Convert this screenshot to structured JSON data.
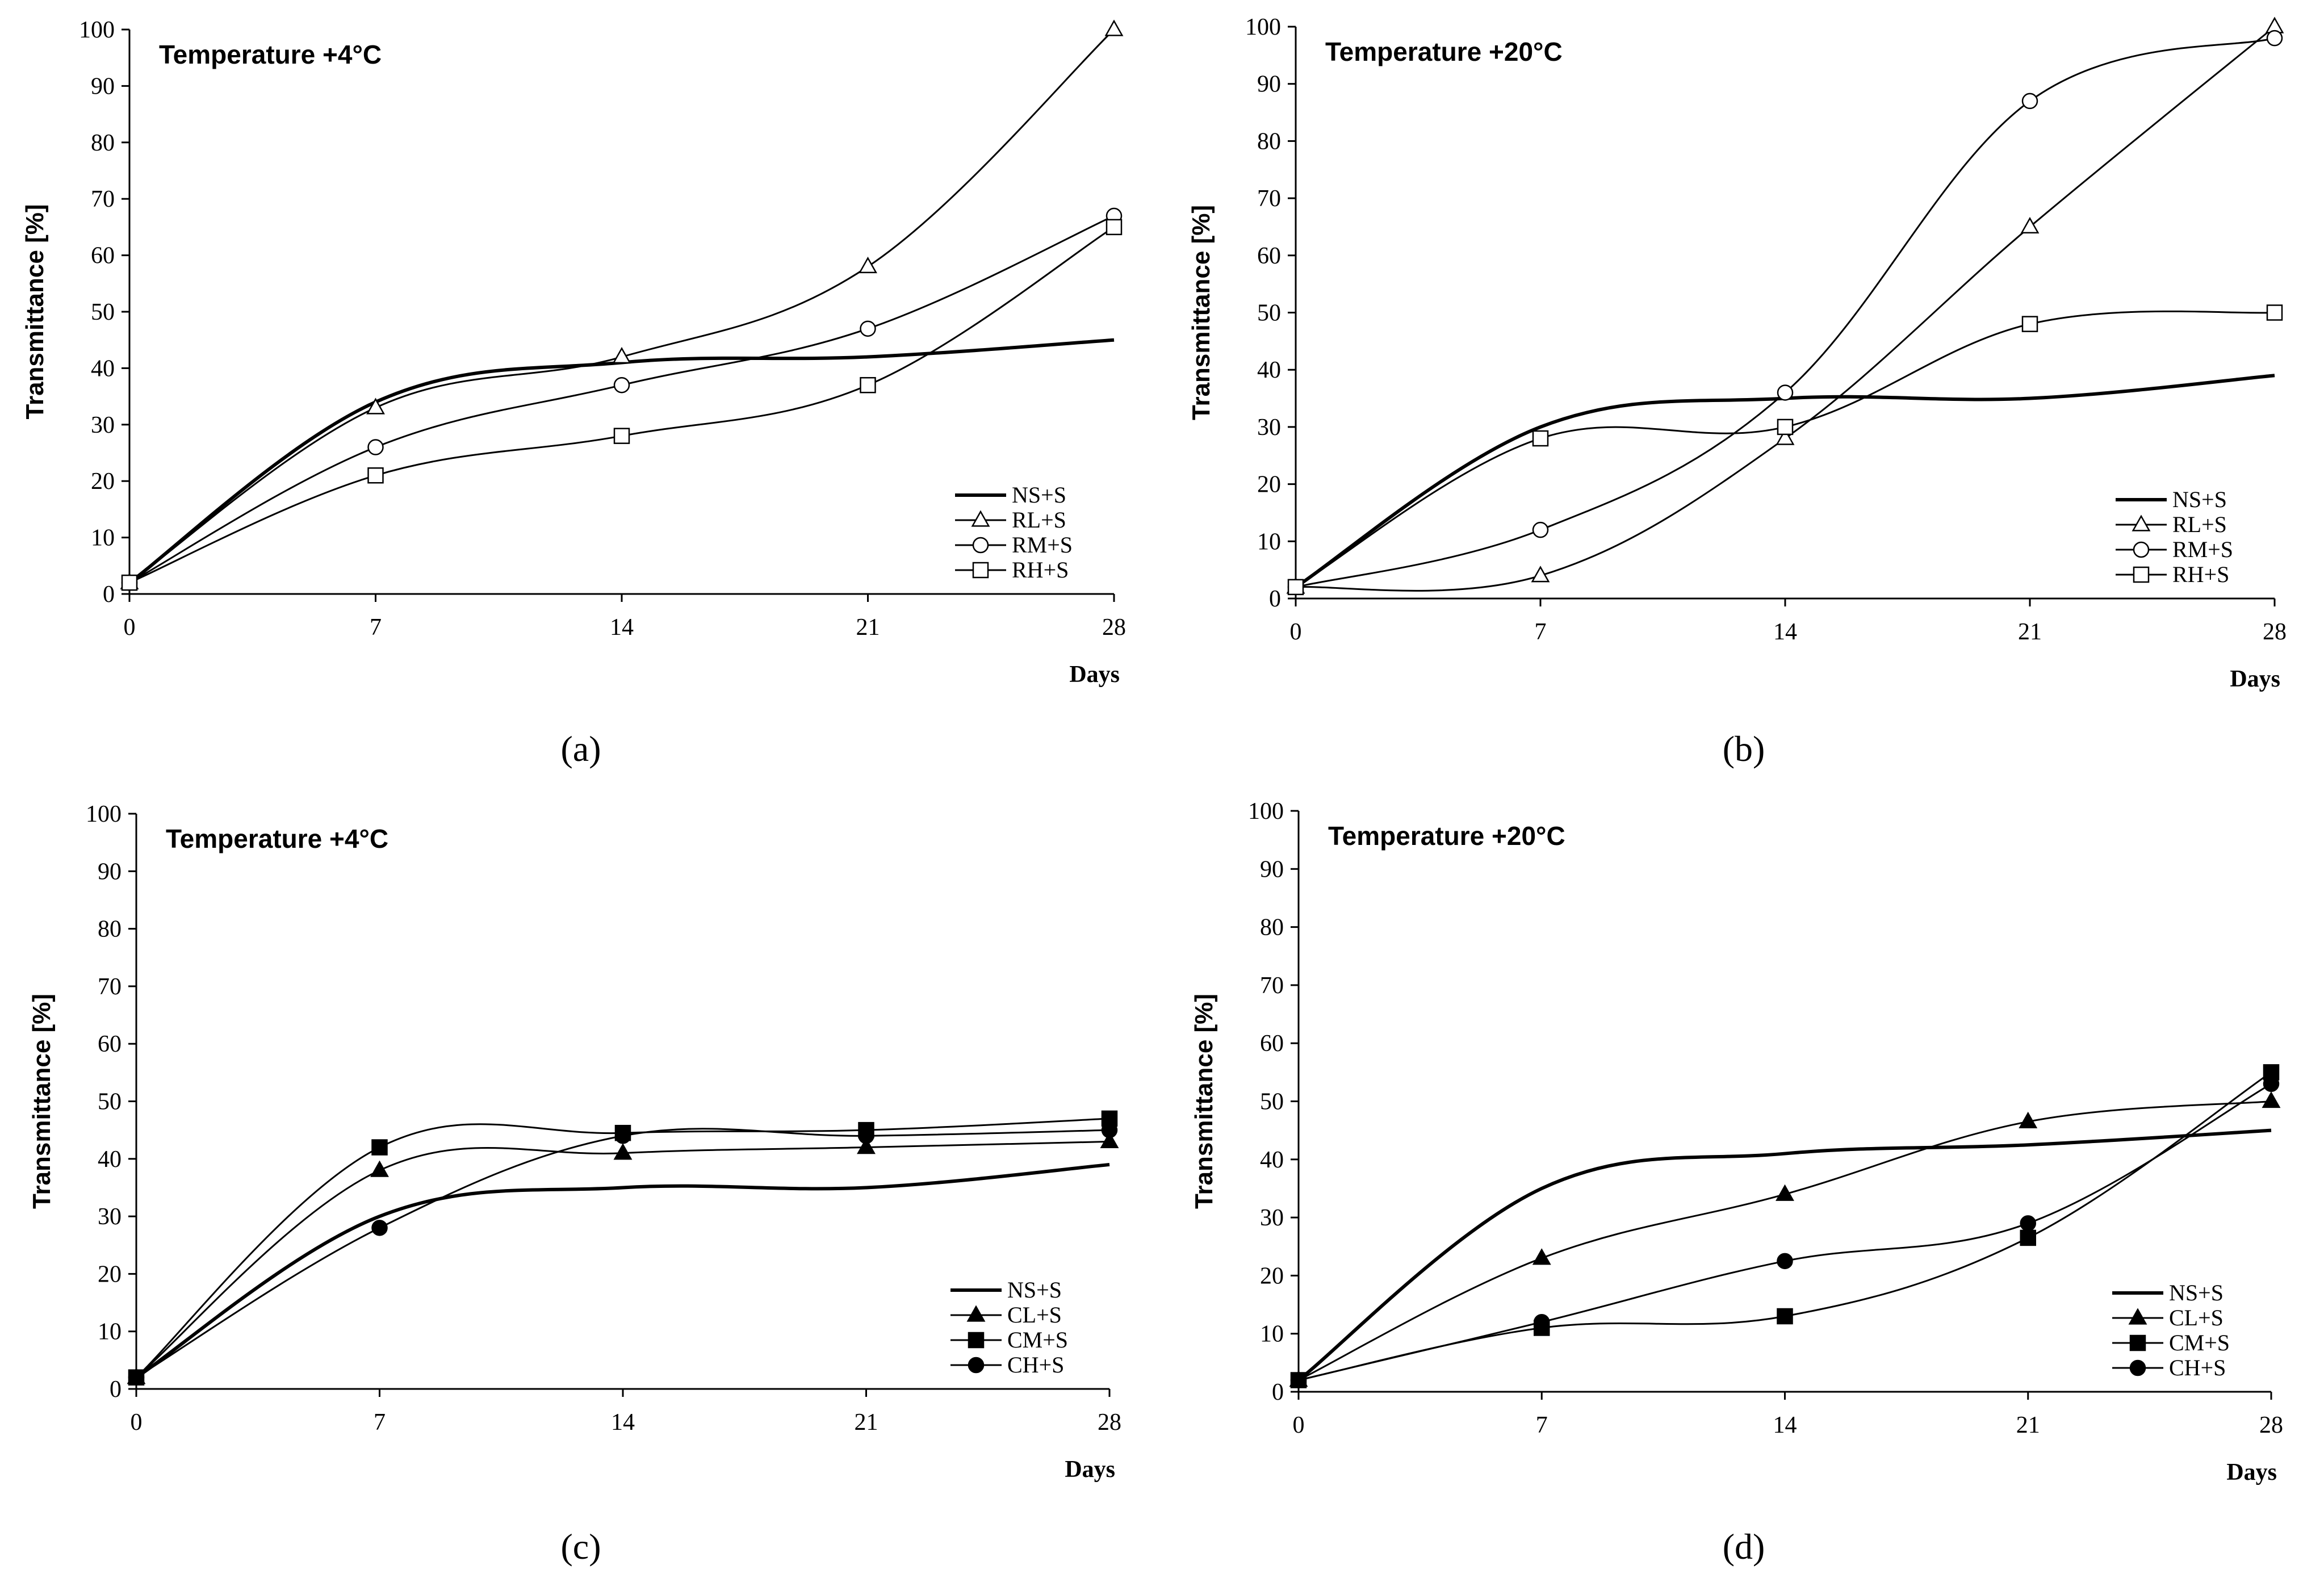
{
  "figure": {
    "x_ticks": [
      "0",
      "7",
      "14",
      "21",
      "28"
    ],
    "y_ticks": [
      "0",
      "10",
      "20",
      "30",
      "40",
      "50",
      "60",
      "70",
      "80",
      "90",
      "100"
    ]
  },
  "chart_data": [
    {
      "panel": "a",
      "type": "line",
      "caption": "(a)",
      "title": "Temperature +4°C",
      "xlabel": "Days",
      "ylabel": "Transmittance [%]",
      "x": [
        0,
        7,
        14,
        21,
        28
      ],
      "xlim": [
        0,
        28
      ],
      "ylim": [
        0,
        100
      ],
      "legend_position": "bottom-right",
      "series": [
        {
          "name": "NS+S",
          "marker": "none",
          "values": [
            2,
            34,
            41,
            42,
            45
          ]
        },
        {
          "name": "RL+S",
          "marker": "open-triangle",
          "values": [
            2,
            33,
            42,
            58,
            100
          ]
        },
        {
          "name": "RM+S",
          "marker": "open-circle",
          "values": [
            2,
            26,
            37,
            47,
            67
          ]
        },
        {
          "name": "RH+S",
          "marker": "open-square",
          "values": [
            2,
            21,
            28,
            37,
            65
          ]
        }
      ]
    },
    {
      "panel": "b",
      "type": "line",
      "caption": "(b)",
      "title": "Temperature +20°C",
      "xlabel": "Days",
      "ylabel": "Transmittance [%]",
      "x": [
        0,
        7,
        14,
        21,
        28
      ],
      "xlim": [
        0,
        28
      ],
      "ylim": [
        0,
        100
      ],
      "legend_position": "bottom-right",
      "series": [
        {
          "name": "NS+S",
          "marker": "none",
          "values": [
            2,
            30,
            35,
            35,
            39
          ]
        },
        {
          "name": "RL+S",
          "marker": "open-triangle",
          "values": [
            2,
            4,
            28,
            65,
            100
          ]
        },
        {
          "name": "RM+S",
          "marker": "open-circle",
          "values": [
            2,
            12,
            36,
            87,
            98
          ]
        },
        {
          "name": "RH+S",
          "marker": "open-square",
          "values": [
            2,
            28,
            30,
            48,
            50
          ]
        }
      ]
    },
    {
      "panel": "c",
      "type": "line",
      "caption": "(c)",
      "title": "Temperature +4°C",
      "xlabel": "Days",
      "ylabel": "Transmittance [%]",
      "x": [
        0,
        7,
        14,
        21,
        28
      ],
      "xlim": [
        0,
        28
      ],
      "ylim": [
        0,
        100
      ],
      "legend_position": "bottom-right",
      "series": [
        {
          "name": "NS+S",
          "marker": "none",
          "values": [
            2,
            30,
            35,
            35,
            39
          ]
        },
        {
          "name": "CL+S",
          "marker": "filled-triangle",
          "values": [
            2,
            38,
            41,
            42,
            43
          ]
        },
        {
          "name": "CM+S",
          "marker": "filled-square",
          "values": [
            2,
            42,
            44.5,
            45,
            47
          ]
        },
        {
          "name": "CH+S",
          "marker": "filled-circle",
          "values": [
            2,
            28,
            44,
            44,
            45
          ]
        }
      ]
    },
    {
      "panel": "d",
      "type": "line",
      "caption": "(d)",
      "title": "Temperature +20°C",
      "xlabel": "Days",
      "ylabel": "Transmittance [%]",
      "x": [
        0,
        7,
        14,
        21,
        28
      ],
      "xlim": [
        0,
        28
      ],
      "ylim": [
        0,
        100
      ],
      "legend_position": "bottom-right",
      "series": [
        {
          "name": "NS+S",
          "marker": "none",
          "values": [
            2,
            35,
            41,
            42.5,
            45
          ]
        },
        {
          "name": "CL+S",
          "marker": "filled-triangle",
          "values": [
            2,
            23,
            34,
            46.5,
            50
          ]
        },
        {
          "name": "CM+S",
          "marker": "filled-square",
          "values": [
            2,
            11,
            13,
            26.5,
            55
          ]
        },
        {
          "name": "CH+S",
          "marker": "filled-circle",
          "values": [
            2,
            12,
            22.5,
            29,
            53
          ]
        }
      ]
    }
  ]
}
